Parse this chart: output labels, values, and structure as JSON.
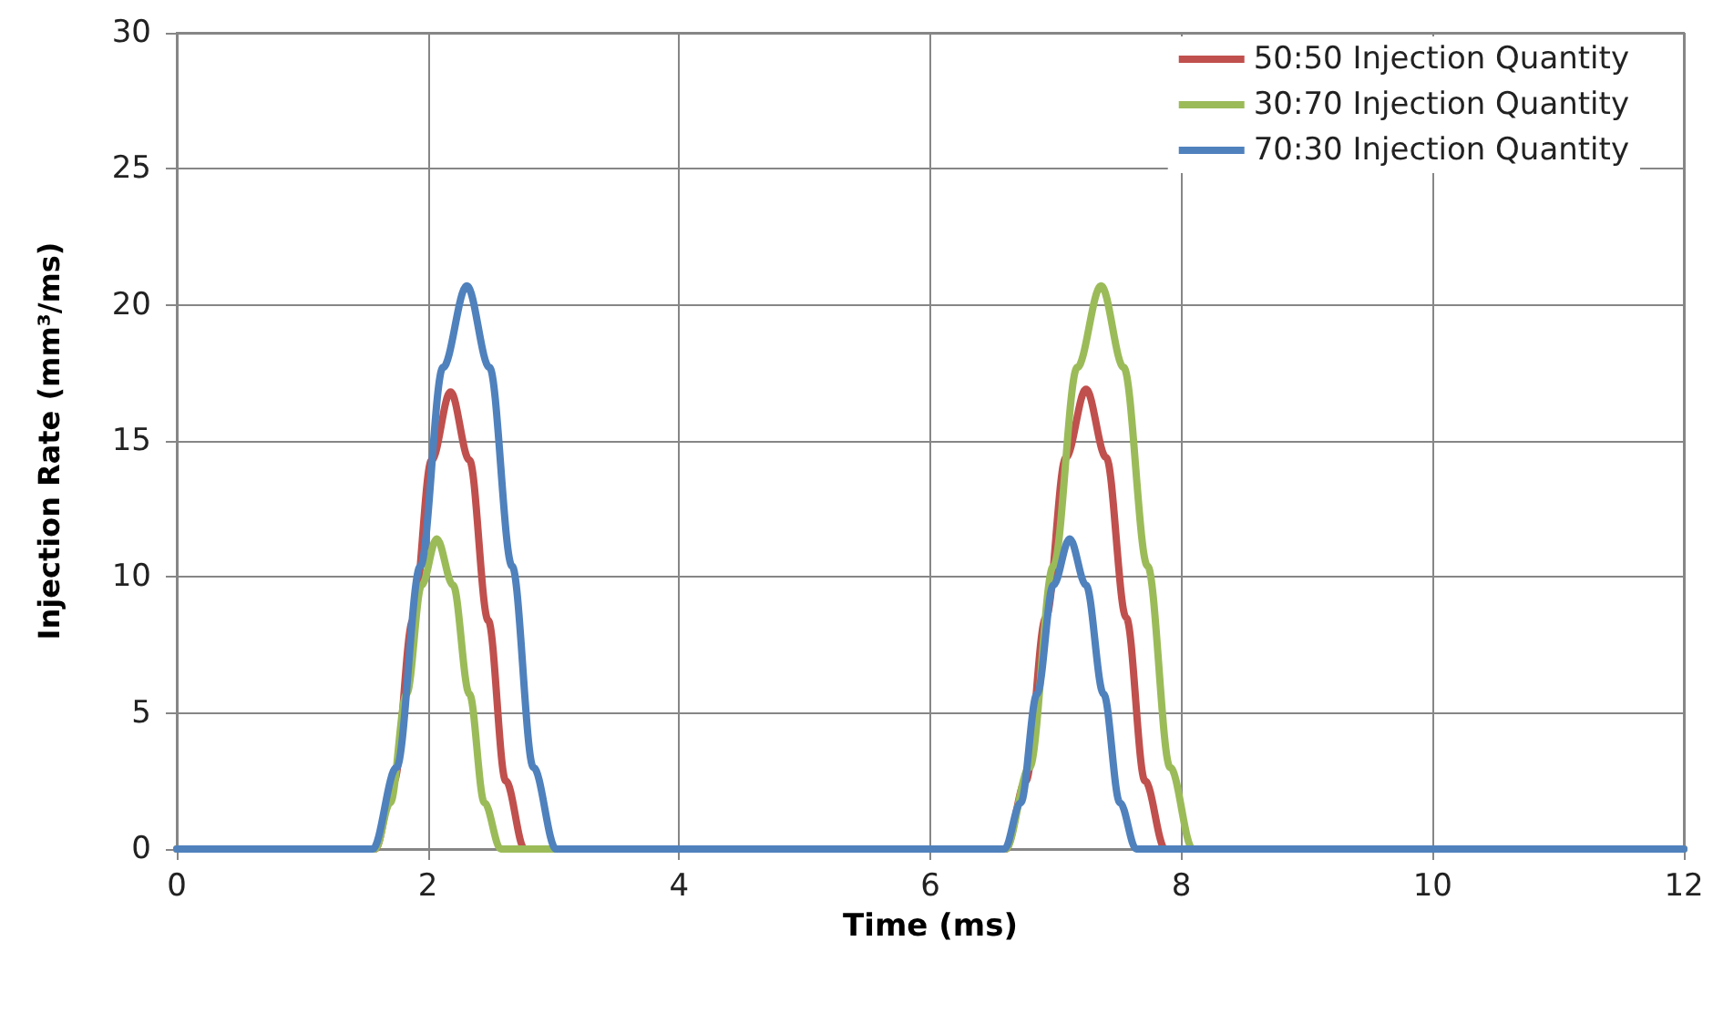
{
  "chart_data": {
    "type": "line",
    "xlabel": "Time (ms)",
    "ylabel": "Injection Rate (mm³/ms)",
    "xlim": [
      0,
      12
    ],
    "xticks": [
      0,
      2,
      4,
      6,
      8,
      10,
      12
    ],
    "ylim": [
      0,
      30
    ],
    "yticks": [
      0,
      5,
      10,
      15,
      20,
      25,
      30
    ],
    "grid": true,
    "legend": "top right",
    "marker": "none",
    "line_style": "solid",
    "series": [
      {
        "name": "50:50 Injection Quantity",
        "color": "#c0504d",
        "x": [
          0,
          1.58,
          1.73,
          1.88,
          2.03,
          2.18,
          2.33,
          2.48,
          2.62,
          2.77,
          6.6,
          6.76,
          6.92,
          7.08,
          7.24,
          7.4,
          7.56,
          7.71,
          7.87,
          12
        ],
        "values": [
          0,
          0,
          2.5,
          8.4,
          14.3,
          16.8,
          14.3,
          8.4,
          2.5,
          0,
          0,
          2.5,
          8.5,
          14.4,
          16.9,
          14.4,
          8.5,
          2.5,
          0,
          0
        ]
      },
      {
        "name": "30:70 Injection Quantity",
        "color": "#9bbb59",
        "x": [
          0,
          1.58,
          1.7,
          1.83,
          1.95,
          2.07,
          2.2,
          2.33,
          2.45,
          2.58,
          6.6,
          6.79,
          6.98,
          7.17,
          7.36,
          7.54,
          7.73,
          7.91,
          8.09,
          12
        ],
        "values": [
          0,
          0,
          1.7,
          5.7,
          9.7,
          11.4,
          9.7,
          5.7,
          1.7,
          0,
          0,
          3.0,
          10.4,
          17.7,
          20.7,
          17.7,
          10.4,
          3.0,
          0,
          0
        ]
      },
      {
        "name": "70:30 Injection Quantity",
        "color": "#4f81bd",
        "x": [
          0,
          1.56,
          1.75,
          1.94,
          2.12,
          2.31,
          2.49,
          2.67,
          2.84,
          3.02,
          6.59,
          6.72,
          6.85,
          6.98,
          7.11,
          7.24,
          7.38,
          7.51,
          7.64,
          12
        ],
        "values": [
          0,
          0,
          3.0,
          10.4,
          17.7,
          20.7,
          17.7,
          10.4,
          3.0,
          0,
          0,
          1.7,
          5.7,
          9.7,
          11.4,
          9.7,
          5.7,
          1.7,
          0,
          0
        ]
      }
    ]
  }
}
